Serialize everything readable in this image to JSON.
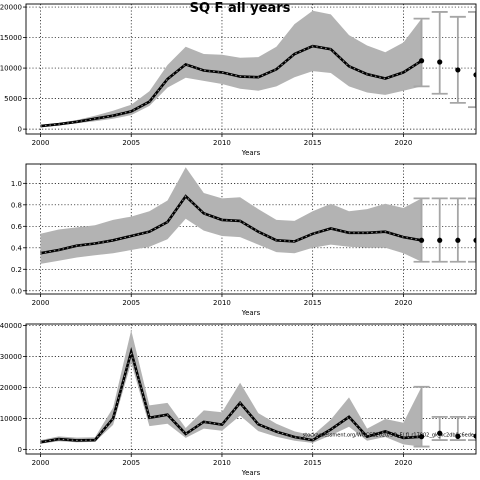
{
  "figure": {
    "title": "SQ F all years"
  },
  "chart_data": [
    {
      "type": "line",
      "xlabel": "Years",
      "ylabel": "",
      "xlim": [
        1999.2,
        2024
      ],
      "ylim": [
        -800,
        20500
      ],
      "xticks": [
        2000,
        2005,
        2010,
        2015,
        2020
      ],
      "yticks": [
        0,
        5000,
        10000,
        15000,
        20000
      ],
      "grid": "dotted",
      "x": [
        2000,
        2001,
        2002,
        2003,
        2004,
        2005,
        2006,
        2007,
        2008,
        2009,
        2010,
        2011,
        2012,
        2013,
        2014,
        2015,
        2016,
        2017,
        2018,
        2019,
        2020,
        2021
      ],
      "values": [
        500,
        800,
        1200,
        1700,
        2200,
        2900,
        4500,
        8200,
        10600,
        9600,
        9300,
        8600,
        8500,
        9800,
        12300,
        13600,
        13100,
        10300,
        9000,
        8300,
        9300,
        11200
      ],
      "lower": [
        300,
        600,
        950,
        1300,
        1700,
        2300,
        3800,
        6800,
        8400,
        7900,
        7400,
        6600,
        6300,
        7000,
        8500,
        9500,
        9200,
        7000,
        6000,
        5600,
        6300,
        7000
      ],
      "upper": [
        700,
        1000,
        1500,
        2200,
        3000,
        4000,
        6200,
        10500,
        13500,
        12300,
        12200,
        11700,
        11800,
        13500,
        17200,
        19400,
        18800,
        15400,
        13700,
        12600,
        14200,
        18100
      ],
      "forecast": [
        {
          "x": 2022,
          "value": 11000,
          "lower": 5800,
          "upper": 19200
        },
        {
          "x": 2023,
          "value": 9700,
          "lower": 4300,
          "upper": 18400
        },
        {
          "x": 2024,
          "value": 8900,
          "lower": 3600,
          "upper": 19200
        }
      ]
    },
    {
      "type": "line",
      "xlabel": "Years",
      "ylabel": "",
      "xlim": [
        1999.2,
        2024
      ],
      "ylim": [
        -0.03,
        1.18
      ],
      "xticks": [
        2000,
        2005,
        2010,
        2015,
        2020
      ],
      "yticks": [
        0.0,
        0.2,
        0.4,
        0.6,
        0.8,
        1.0
      ],
      "ytick_labels": [
        "0.0",
        "0.2",
        "0.4",
        "0.6",
        "0.8",
        "1.0"
      ],
      "grid": "dotted",
      "x": [
        2000,
        2001,
        2002,
        2003,
        2004,
        2005,
        2006,
        2007,
        2008,
        2009,
        2010,
        2011,
        2012,
        2013,
        2014,
        2015,
        2016,
        2017,
        2018,
        2019,
        2020,
        2021
      ],
      "values": [
        0.35,
        0.38,
        0.42,
        0.44,
        0.47,
        0.51,
        0.55,
        0.64,
        0.88,
        0.72,
        0.66,
        0.65,
        0.55,
        0.47,
        0.46,
        0.53,
        0.58,
        0.54,
        0.54,
        0.55,
        0.5,
        0.47
      ],
      "lower": [
        0.25,
        0.28,
        0.31,
        0.33,
        0.35,
        0.38,
        0.41,
        0.48,
        0.67,
        0.56,
        0.51,
        0.5,
        0.43,
        0.36,
        0.35,
        0.4,
        0.43,
        0.41,
        0.4,
        0.4,
        0.35,
        0.27
      ],
      "upper": [
        0.53,
        0.57,
        0.59,
        0.61,
        0.66,
        0.69,
        0.74,
        0.84,
        1.15,
        0.91,
        0.86,
        0.87,
        0.76,
        0.66,
        0.65,
        0.74,
        0.81,
        0.74,
        0.76,
        0.81,
        0.77,
        0.86
      ],
      "forecast": [
        {
          "x": 2022,
          "value": 0.47,
          "lower": 0.27,
          "upper": 0.86
        },
        {
          "x": 2023,
          "value": 0.47,
          "lower": 0.27,
          "upper": 0.86
        },
        {
          "x": 2024,
          "value": 0.47,
          "lower": 0.27,
          "upper": 0.86
        }
      ]
    },
    {
      "type": "line",
      "xlabel": "Years",
      "ylabel": "",
      "xlim": [
        1999.2,
        2024
      ],
      "ylim": [
        -1500,
        40500
      ],
      "xticks": [
        2000,
        2005,
        2010,
        2015,
        2020
      ],
      "yticks": [
        0,
        10000,
        20000,
        30000,
        40000
      ],
      "grid": "dotted",
      "annotation": "stockassessment.org/WGCSE2020/SQ_F/ fl_r17802_gk_xc2db0c6ede",
      "x": [
        2000,
        2001,
        2002,
        2003,
        2004,
        2005,
        2006,
        2007,
        2008,
        2009,
        2010,
        2011,
        2012,
        2013,
        2014,
        2015,
        2016,
        2017,
        2018,
        2019,
        2020,
        2021
      ],
      "values": [
        2300,
        3300,
        2900,
        3000,
        10000,
        31500,
        10200,
        11200,
        5000,
        8900,
        8000,
        15000,
        8100,
        5700,
        4000,
        3000,
        6400,
        10500,
        4100,
        5800,
        3700,
        4100
      ],
      "lower": [
        1800,
        2600,
        2300,
        2400,
        7900,
        28000,
        7500,
        8300,
        3700,
        6700,
        6000,
        10900,
        5900,
        4100,
        2800,
        2100,
        4500,
        7300,
        2800,
        4000,
        1600,
        900
      ],
      "upper": [
        3000,
        4200,
        3800,
        3900,
        13500,
        38500,
        14200,
        15000,
        6900,
        12600,
        12000,
        21500,
        11700,
        8300,
        5800,
        4500,
        9600,
        16800,
        6700,
        9800,
        8600,
        20200
      ],
      "forecast": [
        {
          "x": 2022,
          "value": 5200,
          "lower": 3000,
          "upper": 10500
        },
        {
          "x": 2023,
          "value": 4200,
          "lower": 3000,
          "upper": 10500
        },
        {
          "x": 2024,
          "value": 4300,
          "lower": 3000,
          "upper": 10500
        }
      ]
    }
  ]
}
